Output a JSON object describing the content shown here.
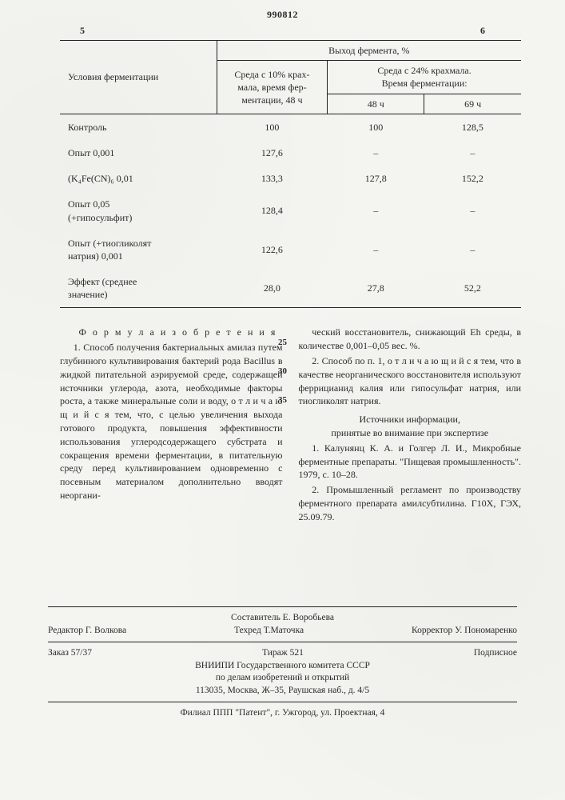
{
  "doc_number": "990812",
  "page_left": "5",
  "page_right": "6",
  "table": {
    "col_headers": {
      "conditions": "Условия ферментации",
      "yield": "Выход фермента, %",
      "medium10": "Среда с 10% крах-\nмала, время фер-\nментации, 48 ч",
      "medium24_top": "Среда с 24% крахмала.\nВремя ферментации:",
      "h48": "48 ч",
      "h69": "69 ч"
    },
    "rows": [
      {
        "label": "Контроль",
        "a": "100",
        "b": "100",
        "c": "128,5"
      },
      {
        "label": "Опыт 0,001",
        "a": "127,6",
        "b": "–",
        "c": "–"
      },
      {
        "label": "(K₄Fe(CN)₆ 0,01",
        "a": "133,3",
        "b": "127,8",
        "c": "152,2"
      },
      {
        "label": "Опыт 0,05\n(+гипосульфит)",
        "a": "128,4",
        "b": "–",
        "c": "–"
      },
      {
        "label": "Опыт (+тиогликолят\nнатрия) 0,001",
        "a": "122,6",
        "b": "–",
        "c": "–"
      },
      {
        "label": "Эффект (среднее\nзначение)",
        "a": "28,0",
        "b": "27,8",
        "c": "52,2"
      }
    ]
  },
  "formula_heading": "Ф о р м у л а   и з о б р е т е н и я",
  "left_col_paras": [
    "1. Способ получения бактериальных амилаз путем глубинного культивирования бактерий рода Bacillus в жидкой питательной аэрируе­мой среде, содержащей источники углерода, азота, необходимые факторы роста, а также минеральные соли и воду, о т л и ч а ю ­щ и й с я  тем, что, с целью увеличения выхода готового продукта, повышения эф­фективности использования углеродсодер­жащего субстрата и сокращения времени ферментации, в питательную среду перед культивированием одновременно с посевным материалом дополнительно вводят неоргани-"
  ],
  "right_col_paras": [
    "ческий восстановитель, снижающий Eh среды, в количестве 0,001–0,05 вес. %.",
    "2. Способ по п. 1, о т л и ч а ю щ и й ­с я  тем, что в качестве неорганического вос­становителя используют феррицианид калия или гипосульфат натрия, или тиогликолят натрия."
  ],
  "sources_heading": "Источники информации,\nпринятые во внимание при экспертизе",
  "sources": [
    "1. Калунянц К. А. и Голгер Л. И., Мик­робные ферментные препараты. \"Пищевая промышленность\". 1979, с. 10–28.",
    "2. Промышленный регламент по произ­водству ферментного препарата амилсубтили­на. Г10Х, ГЭХ, 25.09.79."
  ],
  "gutter": [
    "25",
    "30",
    "35"
  ],
  "footer": {
    "compiler": "Составитель Е. Воробьева",
    "editor": "Редактор Г. Волкова",
    "techred": "Техред Т.Маточка",
    "corrector": "Корректор У. Пономаренко",
    "order": "Заказ 57/37",
    "tirazh": "Тираж 521",
    "subscr": "Подписное",
    "org1": "ВНИИПИ Государственного комитета СССР",
    "org2": "по делам изобретений и открытий",
    "addr1": "113035, Москва, Ж–35, Раушская наб., д. 4/5",
    "addr2": "Филиал ППП \"Патент\", г. Ужгород, ул. Проектная, 4"
  }
}
